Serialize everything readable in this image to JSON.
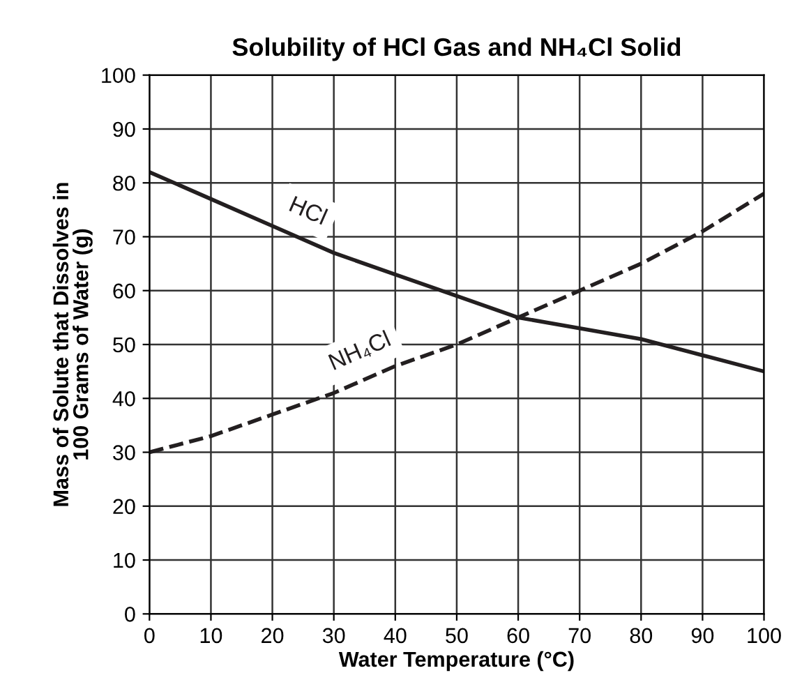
{
  "chart_data": {
    "type": "line",
    "title": "Solubility of HCl Gas and NH₄Cl Solid",
    "xlabel": "Water Temperature (°C)",
    "ylabel": "Mass of Solute that Dissolves in\n100 Grams of Water (g)",
    "x": [
      0,
      10,
      20,
      30,
      40,
      50,
      60,
      70,
      80,
      90,
      100
    ],
    "series": [
      {
        "name": "HCl",
        "color": "#231f20",
        "line_style": "solid",
        "values": [
          82,
          77,
          72,
          67,
          63,
          59,
          55,
          53,
          51,
          48,
          45
        ]
      },
      {
        "name": "NH₄Cl",
        "color": "#231f20",
        "line_style": "dashed",
        "values": [
          30,
          33,
          37,
          41,
          46,
          50,
          55,
          60,
          65,
          71,
          78
        ]
      }
    ],
    "xlim": [
      0,
      100
    ],
    "ylim": [
      0,
      100
    ],
    "xticks": [
      0,
      10,
      20,
      30,
      40,
      50,
      60,
      70,
      80,
      90,
      100
    ],
    "yticks": [
      0,
      10,
      20,
      30,
      40,
      50,
      60,
      70,
      80,
      90,
      100
    ],
    "grid": true,
    "legend": false
  }
}
